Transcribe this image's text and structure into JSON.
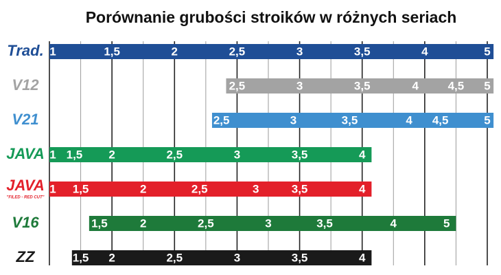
{
  "chart_data": {
    "type": "range-bar",
    "title": "Porównanie grubości stroików w różnych seriach",
    "xlim": [
      0,
      14
    ],
    "xticks": [
      0,
      1,
      2,
      3,
      4,
      5,
      6,
      7,
      8,
      9,
      10,
      11,
      12,
      13,
      14
    ],
    "grid": true,
    "series": [
      {
        "name": "Trad.",
        "color": "#1f4e96",
        "range": [
          0,
          14.2
        ],
        "x": [
          0,
          2,
          4,
          6,
          8,
          10,
          12,
          14
        ],
        "labels": [
          "1",
          "1,5",
          "2",
          "2,5",
          "3",
          "3,5",
          "4",
          "5"
        ]
      },
      {
        "name": "V12",
        "color": "#a3a3a3",
        "range": [
          5.65,
          14.2
        ],
        "x": [
          6,
          8,
          10,
          11.7,
          13,
          14
        ],
        "labels": [
          "2,5",
          "3",
          "3,5",
          "4",
          "4,5",
          "5"
        ]
      },
      {
        "name": "V21",
        "color": "#3f8fcf",
        "range": [
          5.2,
          14.2
        ],
        "x": [
          5.5,
          7.8,
          9.6,
          11.5,
          12.5,
          14
        ],
        "labels": [
          "2,5",
          "3",
          "3,5",
          "4",
          "4,5",
          "5"
        ]
      },
      {
        "name": "JAVA",
        "color": "#159a57",
        "range": [
          0,
          10.3
        ],
        "x": [
          0,
          0.8,
          2,
          4,
          6,
          8,
          10
        ],
        "labels": [
          "1",
          "1,5",
          "2",
          "2,5",
          "3",
          "3,5",
          "4"
        ]
      },
      {
        "name": "JAVA",
        "note": "\"FILED - RED CUT\"",
        "color": "#e3202a",
        "range": [
          0,
          10.3
        ],
        "x": [
          0,
          1,
          3,
          4.8,
          6.6,
          8,
          10
        ],
        "labels": [
          "1",
          "1,5",
          "2",
          "2,5",
          "3",
          "3,5",
          "4"
        ]
      },
      {
        "name": "V16",
        "color": "#1e7a3a",
        "range": [
          1.27,
          13
        ],
        "x": [
          1.6,
          3,
          5,
          7,
          8.8,
          11,
          12.7
        ],
        "labels": [
          "1,5",
          "2",
          "2,5",
          "3",
          "3,5",
          "4",
          "5"
        ]
      },
      {
        "name": "ZZ",
        "color": "#1a1a1a",
        "range": [
          0.72,
          10.3
        ],
        "x": [
          1,
          2,
          4,
          6,
          8,
          10
        ],
        "labels": [
          "1,5",
          "2",
          "2,5",
          "3",
          "3,5",
          "4"
        ]
      }
    ]
  }
}
